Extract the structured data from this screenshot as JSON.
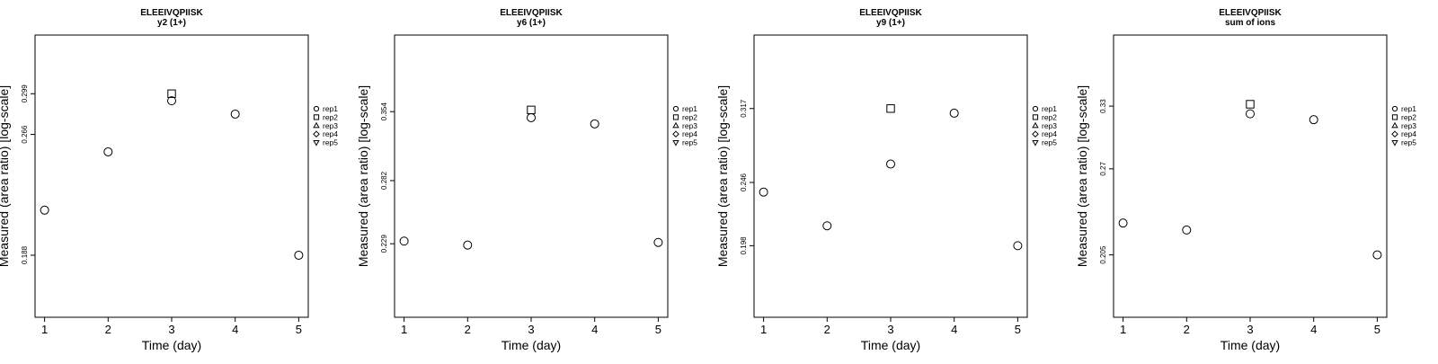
{
  "chart_data": [
    {
      "type": "scatter",
      "title": "ELEEIVQPIISK",
      "subtitle": "y2 (1+)",
      "xlabel": "Time (day)",
      "ylabel": "Measured (area ratio) [log-scale]",
      "log_y": true,
      "xlim": [
        0.85,
        5.15
      ],
      "ylim": [
        0.1573,
        0.3539
      ],
      "x_ticks": [
        "1",
        "2",
        "3",
        "4",
        "5"
      ],
      "y_ticks": [
        {
          "value": 0.188,
          "label": "0.188"
        },
        {
          "value": 0.266,
          "label": "0.266"
        },
        {
          "value": 0.299,
          "label": "0.299"
        }
      ],
      "legend": [
        {
          "name": "rep1",
          "marker": "circle"
        },
        {
          "name": "rep2",
          "marker": "square"
        },
        {
          "name": "rep3",
          "marker": "triangle-up"
        },
        {
          "name": "rep4",
          "marker": "diamond"
        },
        {
          "name": "rep5",
          "marker": "triangle-down"
        }
      ],
      "legend_position": "right",
      "grid": false,
      "series": [
        {
          "name": "rep1",
          "marker": "circle",
          "points": [
            {
              "x": 1,
              "y": 0.214
            },
            {
              "x": 2,
              "y": 0.253
            },
            {
              "x": 3,
              "y": 0.293
            },
            {
              "x": 4,
              "y": 0.282
            },
            {
              "x": 5,
              "y": 0.188
            }
          ]
        },
        {
          "name": "rep2",
          "marker": "square",
          "points": [
            {
              "x": 3,
              "y": 0.299
            }
          ]
        }
      ]
    },
    {
      "type": "scatter",
      "title": "ELEEIVQPIISK",
      "subtitle": "y6 (1+)",
      "xlabel": "Time (day)",
      "ylabel": "Measured (area ratio) [log-scale]",
      "log_y": true,
      "xlim": [
        0.85,
        5.15
      ],
      "ylim": [
        0.1797,
        0.4557
      ],
      "x_ticks": [
        "1",
        "2",
        "3",
        "4",
        "5"
      ],
      "y_ticks": [
        {
          "value": 0.229,
          "label": "0.229"
        },
        {
          "value": 0.282,
          "label": "0.282"
        },
        {
          "value": 0.354,
          "label": "0.354"
        }
      ],
      "legend": [
        {
          "name": "rep1",
          "marker": "circle"
        },
        {
          "name": "rep2",
          "marker": "square"
        },
        {
          "name": "rep3",
          "marker": "triangle-up"
        },
        {
          "name": "rep4",
          "marker": "diamond"
        },
        {
          "name": "rep5",
          "marker": "triangle-down"
        }
      ],
      "legend_position": "right",
      "grid": false,
      "series": [
        {
          "name": "rep1",
          "marker": "circle",
          "points": [
            {
              "x": 1,
              "y": 0.231
            },
            {
              "x": 2,
              "y": 0.228
            },
            {
              "x": 3,
              "y": 0.347
            },
            {
              "x": 4,
              "y": 0.34
            },
            {
              "x": 5,
              "y": 0.23
            }
          ]
        },
        {
          "name": "rep2",
          "marker": "square",
          "points": [
            {
              "x": 3,
              "y": 0.356
            }
          ]
        }
      ]
    },
    {
      "type": "scatter",
      "title": "ELEEIVQPIISK",
      "subtitle": "y9 (1+)",
      "xlabel": "Time (day)",
      "ylabel": "Measured (area ratio) [log-scale]",
      "log_y": true,
      "xlim": [
        0.85,
        5.15
      ],
      "ylim": [
        0.1549,
        0.4079
      ],
      "x_ticks": [
        "1",
        "2",
        "3",
        "4",
        "5"
      ],
      "y_ticks": [
        {
          "value": 0.198,
          "label": "0.198"
        },
        {
          "value": 0.246,
          "label": "0.246"
        },
        {
          "value": 0.317,
          "label": "0.317"
        }
      ],
      "legend": [
        {
          "name": "rep1",
          "marker": "circle"
        },
        {
          "name": "rep2",
          "marker": "square"
        },
        {
          "name": "rep3",
          "marker": "triangle-up"
        },
        {
          "name": "rep4",
          "marker": "diamond"
        },
        {
          "name": "rep5",
          "marker": "triangle-down"
        }
      ],
      "legend_position": "right",
      "grid": false,
      "series": [
        {
          "name": "rep1",
          "marker": "circle",
          "points": [
            {
              "x": 1,
              "y": 0.238
            },
            {
              "x": 2,
              "y": 0.212
            },
            {
              "x": 3,
              "y": 0.262
            },
            {
              "x": 4,
              "y": 0.312
            },
            {
              "x": 5,
              "y": 0.198
            }
          ]
        },
        {
          "name": "rep2",
          "marker": "square",
          "points": [
            {
              "x": 3,
              "y": 0.317
            }
          ]
        }
      ]
    },
    {
      "type": "scatter",
      "title": "ELEEIVQPIISK",
      "subtitle": "sum of ions",
      "xlabel": "Time (day)",
      "ylabel": "Measured (area ratio) [log-scale]",
      "log_y": true,
      "xlim": [
        0.85,
        5.15
      ],
      "ylim": [
        0.1679,
        0.4143
      ],
      "x_ticks": [
        "1",
        "2",
        "3",
        "4",
        "5"
      ],
      "y_ticks": [
        {
          "value": 0.205,
          "label": "0.205"
        },
        {
          "value": 0.27,
          "label": "0.27"
        },
        {
          "value": 0.33,
          "label": "0.33"
        }
      ],
      "legend": [
        {
          "name": "rep1",
          "marker": "circle"
        },
        {
          "name": "rep2",
          "marker": "square"
        },
        {
          "name": "rep3",
          "marker": "triangle-up"
        },
        {
          "name": "rep4",
          "marker": "diamond"
        },
        {
          "name": "rep5",
          "marker": "triangle-down"
        }
      ],
      "legend_position": "right",
      "grid": false,
      "series": [
        {
          "name": "rep1",
          "marker": "circle",
          "points": [
            {
              "x": 1,
              "y": 0.227
            },
            {
              "x": 2,
              "y": 0.222
            },
            {
              "x": 3,
              "y": 0.322
            },
            {
              "x": 4,
              "y": 0.316
            },
            {
              "x": 5,
              "y": 0.205
            }
          ]
        },
        {
          "name": "rep2",
          "marker": "square",
          "points": [
            {
              "x": 3,
              "y": 0.332
            }
          ]
        }
      ]
    }
  ]
}
